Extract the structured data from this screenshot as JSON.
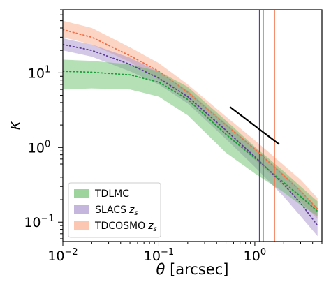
{
  "chart_data": {
    "type": "line",
    "xscale": "log",
    "yscale": "log",
    "xlim": [
      0.01,
      5
    ],
    "ylim": [
      0.055,
      70
    ],
    "xlabel_symbol": "θ",
    "xlabel_unit": " [arcsec]",
    "ylabel": "κ",
    "x_ticks": [
      {
        "value": 0.01,
        "base": "10",
        "exp": "−2"
      },
      {
        "value": 0.1,
        "base": "10",
        "exp": "−1"
      },
      {
        "value": 1,
        "base": "10",
        "exp": "0"
      }
    ],
    "y_ticks": [
      {
        "value": 0.1,
        "base": "10",
        "exp": "−1"
      },
      {
        "value": 1,
        "base": "10",
        "exp": "0"
      },
      {
        "value": 10,
        "base": "10",
        "exp": "1"
      }
    ],
    "grid": false,
    "legend_position": "bottom-left",
    "series": [
      {
        "name": "TDCOSMO",
        "name_sub": "z",
        "name_subscript": "s",
        "color": "#f46d43",
        "fill": "#f8a27e",
        "fill_opacity": 0.45,
        "x": [
          0.01,
          0.02,
          0.05,
          0.1,
          0.2,
          0.5,
          1,
          2,
          3,
          4.5
        ],
        "median": [
          38,
          30,
          17,
          10.5,
          5.5,
          2.0,
          0.95,
          0.42,
          0.26,
          0.15
        ],
        "lower": [
          30,
          24,
          14,
          8.0,
          4.3,
          1.5,
          0.68,
          0.3,
          0.19,
          0.11
        ],
        "upper": [
          50,
          40,
          22,
          13.5,
          7.0,
          2.6,
          1.25,
          0.58,
          0.37,
          0.21
        ]
      },
      {
        "name": "SLACS",
        "name_sub": "z",
        "name_subscript": "s",
        "color": "#5e3c99",
        "fill": "#9e86c8",
        "fill_opacity": 0.45,
        "x": [
          0.01,
          0.02,
          0.05,
          0.1,
          0.2,
          0.5,
          1,
          2,
          3,
          4.5
        ],
        "median": [
          24,
          20,
          13,
          8.5,
          4.8,
          1.7,
          0.75,
          0.32,
          0.18,
          0.09
        ],
        "lower": [
          20,
          16.5,
          10.5,
          7.0,
          3.9,
          1.3,
          0.55,
          0.22,
          0.12,
          0.065
        ],
        "upper": [
          29,
          24,
          16,
          10.3,
          5.8,
          2.1,
          0.98,
          0.44,
          0.27,
          0.15
        ]
      },
      {
        "name": "TDLMC",
        "name_sub": "",
        "name_subscript": "",
        "color": "#1a9e3a",
        "fill": "#5cb85c",
        "fill_opacity": 0.45,
        "x": [
          0.01,
          0.02,
          0.05,
          0.1,
          0.2,
          0.5,
          1,
          2,
          3,
          4.5
        ],
        "median": [
          10.5,
          10.2,
          9.4,
          7.5,
          4.4,
          1.5,
          0.72,
          0.34,
          0.22,
          0.14
        ],
        "lower": [
          6.0,
          6.2,
          6.0,
          4.8,
          2.7,
          0.85,
          0.45,
          0.25,
          0.17,
          0.12
        ],
        "upper": [
          15,
          14.5,
          13.0,
          10.5,
          6.5,
          2.3,
          1.02,
          0.48,
          0.3,
          0.19
        ]
      }
    ],
    "vertical_lines": [
      {
        "x": 1.12,
        "color": "#5e3c99"
      },
      {
        "x": 1.22,
        "color": "#1a9e3a"
      },
      {
        "x": 1.6,
        "color": "#f46d43"
      }
    ],
    "reference_line": {
      "x": [
        0.55,
        1.8
      ],
      "y": [
        3.5,
        1.1
      ],
      "color": "#000000"
    },
    "legend_order": [
      2,
      1,
      0
    ]
  }
}
